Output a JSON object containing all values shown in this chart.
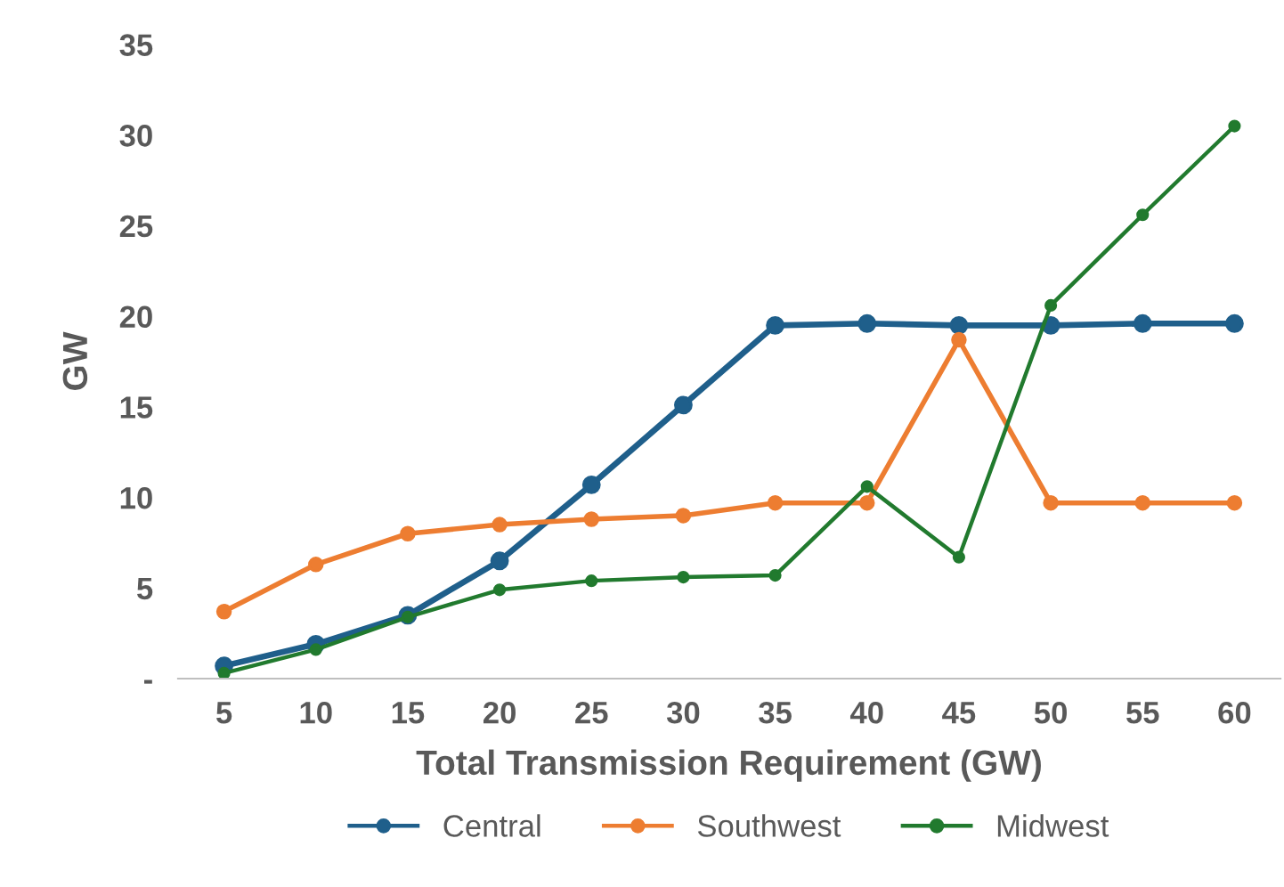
{
  "chart_data": {
    "type": "line",
    "xlabel": "Total Transmission Requirement (GW)",
    "ylabel": "GW",
    "categories": [
      "5",
      "10",
      "15",
      "20",
      "25",
      "30",
      "35",
      "40",
      "45",
      "50",
      "55",
      "60"
    ],
    "series": [
      {
        "name": "Central",
        "color": "#1f5f8b",
        "values": [
          0.7,
          1.9,
          3.5,
          6.5,
          10.7,
          15.1,
          19.5,
          19.6,
          19.5,
          19.5,
          19.6,
          19.6
        ]
      },
      {
        "name": "Southwest",
        "color": "#ed7d31",
        "values": [
          3.7,
          6.3,
          8.0,
          8.5,
          8.8,
          9.0,
          9.7,
          9.7,
          18.7,
          9.7,
          9.7,
          9.7
        ]
      },
      {
        "name": "Midwest",
        "color": "#217a2e",
        "values": [
          0.3,
          1.6,
          3.4,
          4.9,
          5.4,
          5.6,
          5.7,
          10.6,
          6.7,
          20.6,
          25.6,
          30.5
        ]
      }
    ],
    "ylim": [
      0,
      35
    ],
    "yticks": [
      {
        "value": 0,
        "label": "-"
      },
      5,
      10,
      15,
      20,
      25,
      30,
      35
    ],
    "grid": false,
    "legend": "bottom",
    "marker": "circle",
    "line_style": "solid"
  }
}
